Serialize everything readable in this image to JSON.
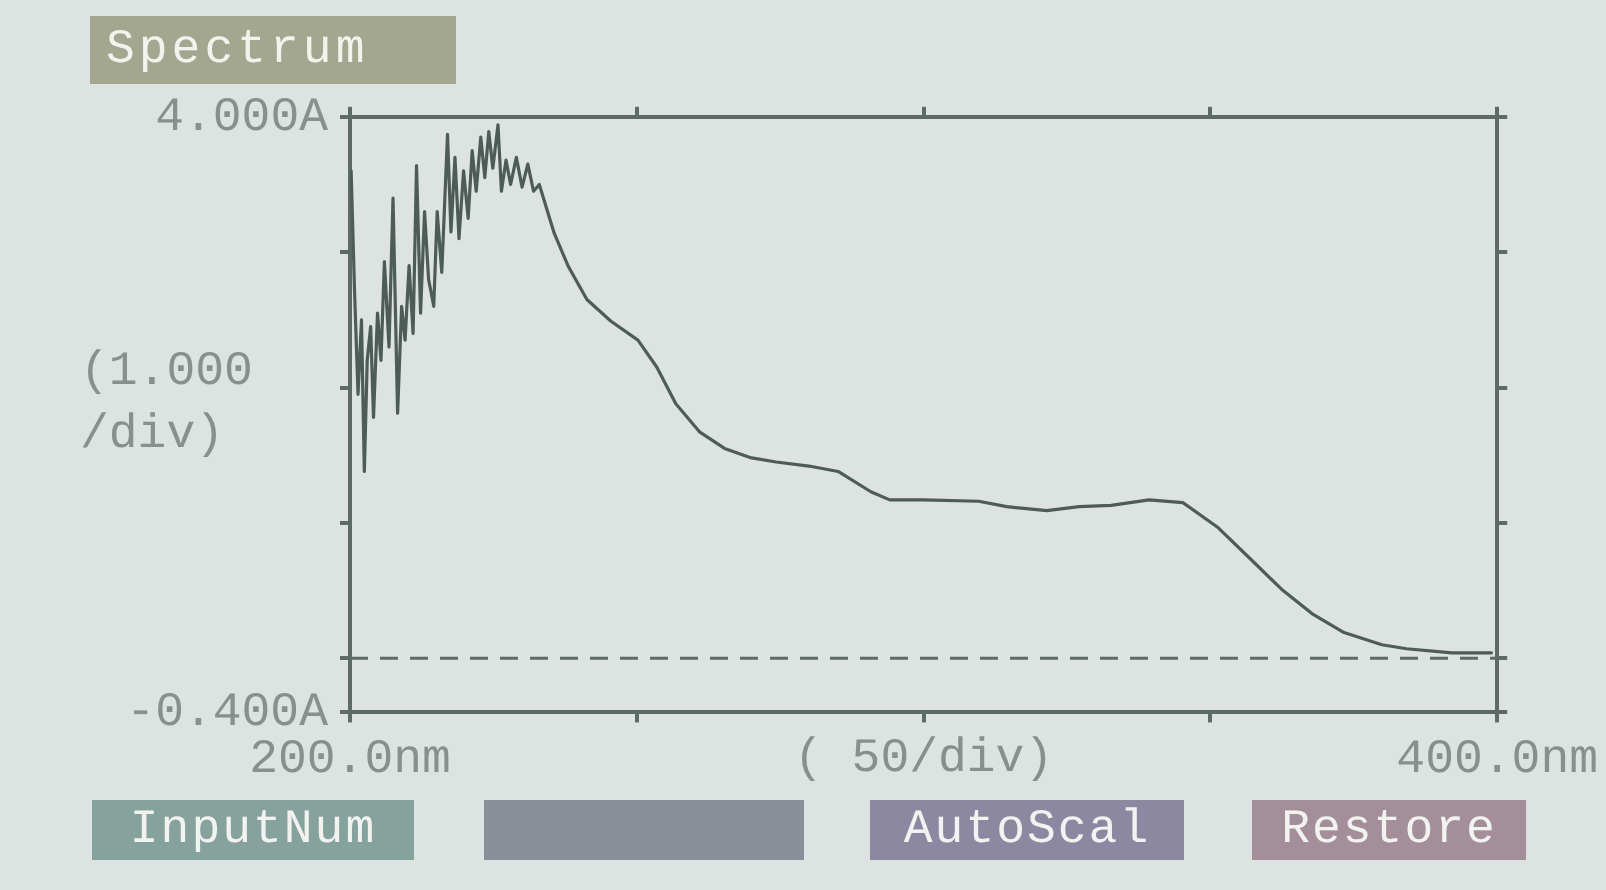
{
  "chart_data": {
    "type": "line",
    "title": "Spectrum",
    "xlabel": "( 50/div)",
    "ylabel": "(1.000 /div)",
    "x": [
      200.2,
      200.8,
      201.4,
      202.0,
      202.5,
      203.0,
      203.6,
      204.1,
      204.8,
      205.4,
      206.0,
      206.8,
      207.5,
      208.3,
      209.0,
      209.6,
      210.3,
      211.0,
      211.6,
      212.3,
      213.0,
      213.7,
      214.6,
      215.2,
      216.0,
      217.0,
      217.6,
      218.3,
      219.0,
      219.8,
      220.6,
      221.3,
      222.0,
      222.8,
      223.5,
      224.2,
      224.9,
      225.8,
      226.4,
      227.2,
      228.0,
      229.0,
      230.0,
      231.0,
      232.0,
      233.0,
      235.6,
      238.0,
      241.3,
      245.5,
      250.2,
      253.5,
      256.8,
      261.0,
      265.3,
      270.0,
      274.3,
      280.0,
      285.1,
      290.8,
      294.1,
      300.0,
      309.6,
      314.5,
      321.5,
      327.1,
      332.7,
      339.3,
      345.2,
      351.2,
      357.8,
      362.4,
      367.7,
      373.3,
      379.9,
      384.2,
      392.1,
      399.0
    ],
    "series": [
      {
        "color": "#4e5c57",
        "values": [
          3.6,
          2.7,
          1.95,
          2.5,
          1.38,
          2.2,
          2.45,
          1.78,
          2.55,
          2.2,
          2.93,
          2.3,
          3.4,
          1.81,
          2.6,
          2.35,
          2.9,
          2.4,
          3.64,
          2.55,
          3.3,
          2.8,
          2.6,
          3.3,
          2.85,
          3.87,
          3.15,
          3.7,
          3.1,
          3.6,
          3.25,
          3.75,
          3.45,
          3.85,
          3.55,
          3.89,
          3.62,
          3.94,
          3.45,
          3.68,
          3.5,
          3.7,
          3.48,
          3.65,
          3.45,
          3.5,
          3.14,
          2.9,
          2.65,
          2.49,
          2.35,
          2.15,
          1.88,
          1.67,
          1.55,
          1.48,
          1.45,
          1.42,
          1.38,
          1.23,
          1.17,
          1.17,
          1.16,
          1.12,
          1.09,
          1.12,
          1.13,
          1.17,
          1.15,
          0.97,
          0.7,
          0.51,
          0.33,
          0.19,
          0.1,
          0.07,
          0.04,
          0.04
        ]
      }
    ],
    "xlim": [
      200,
      400
    ],
    "xticks": [
      {
        "value": 200,
        "label": "200.0nm"
      },
      {
        "value": 250,
        "label": null
      },
      {
        "value": 300,
        "label": null
      },
      {
        "value": 350,
        "label": null
      },
      {
        "value": 400,
        "label": "400.0nm"
      }
    ],
    "ylim": [
      -0.4,
      4
    ],
    "yticks": [
      {
        "value": -0.4,
        "label": "-0.400A"
      },
      {
        "value": 0,
        "label": null
      },
      {
        "value": 1,
        "label": null
      },
      {
        "value": 2,
        "label": null
      },
      {
        "value": 3,
        "label": null
      },
      {
        "value": 4,
        "label": "4.000A"
      }
    ],
    "ref_lines": [
      {
        "axis": "y",
        "value": 0,
        "color": "#5e6a66",
        "line_style": "dashed"
      }
    ],
    "annotations": [
      "InputNum",
      "AutoScal",
      "Restore"
    ],
    "marker": "none"
  }
}
